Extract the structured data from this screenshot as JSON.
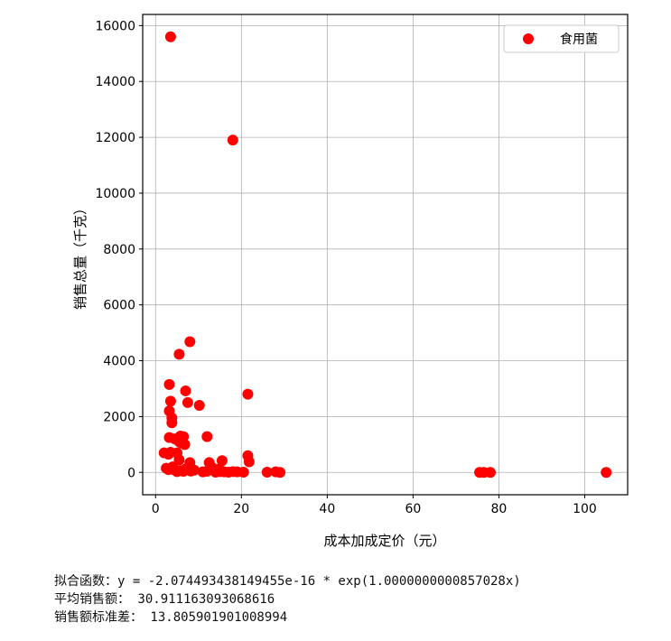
{
  "chart_data": {
    "type": "scatter",
    "xlabel": "成本加成定价（元）",
    "ylabel": "销售总量（千克）",
    "xlim": [
      -3,
      110
    ],
    "ylim": [
      -800,
      16400
    ],
    "xticks": [
      0,
      20,
      40,
      60,
      80,
      100
    ],
    "yticks": [
      0,
      2000,
      4000,
      6000,
      8000,
      10000,
      12000,
      14000,
      16000
    ],
    "grid": true,
    "legend_position": "top-right",
    "series": [
      {
        "name": "食用菌",
        "color": "#ff0000",
        "points": [
          [
            3.5,
            15600
          ],
          [
            18.0,
            11900
          ],
          [
            8.0,
            4680
          ],
          [
            5.5,
            4230
          ],
          [
            3.2,
            3150
          ],
          [
            7.0,
            2920
          ],
          [
            21.5,
            2800
          ],
          [
            3.5,
            2550
          ],
          [
            7.5,
            2500
          ],
          [
            10.2,
            2400
          ],
          [
            3.2,
            2200
          ],
          [
            3.8,
            1950
          ],
          [
            3.8,
            1780
          ],
          [
            5.8,
            1300
          ],
          [
            6.5,
            1280
          ],
          [
            12.0,
            1280
          ],
          [
            3.2,
            1250
          ],
          [
            4.5,
            1200
          ],
          [
            5.5,
            1100
          ],
          [
            6.0,
            1050
          ],
          [
            6.8,
            1000
          ],
          [
            2.0,
            700
          ],
          [
            3.0,
            650
          ],
          [
            3.5,
            720
          ],
          [
            5.0,
            700
          ],
          [
            21.5,
            600
          ],
          [
            5.5,
            450
          ],
          [
            8.0,
            350
          ],
          [
            12.5,
            350
          ],
          [
            15.5,
            420
          ],
          [
            21.8,
            380
          ],
          [
            2.5,
            150
          ],
          [
            3.0,
            100
          ],
          [
            4.0,
            200
          ],
          [
            4.5,
            80
          ],
          [
            5.0,
            30
          ],
          [
            5.8,
            60
          ],
          [
            6.5,
            40
          ],
          [
            7.0,
            120
          ],
          [
            8.2,
            50
          ],
          [
            9.0,
            80
          ],
          [
            11.0,
            20
          ],
          [
            12.0,
            40
          ],
          [
            13.0,
            200
          ],
          [
            14.0,
            10
          ],
          [
            14.8,
            120
          ],
          [
            15.0,
            30
          ],
          [
            16.0,
            20
          ],
          [
            17.0,
            10
          ],
          [
            18.0,
            30
          ],
          [
            19.0,
            20
          ],
          [
            20.5,
            10
          ],
          [
            26.0,
            10
          ],
          [
            28.0,
            20
          ],
          [
            29.0,
            0
          ],
          [
            75.5,
            0
          ],
          [
            76.5,
            0
          ],
          [
            78.0,
            0
          ],
          [
            105.0,
            0
          ]
        ]
      }
    ]
  },
  "output_lines": [
    "拟合函数：y = -2.074493438149455e-16 * exp(1.0000000000857028x)",
    "平均销售额： 30.911163093068616",
    "销售额标准差： 13.805901901008994"
  ]
}
